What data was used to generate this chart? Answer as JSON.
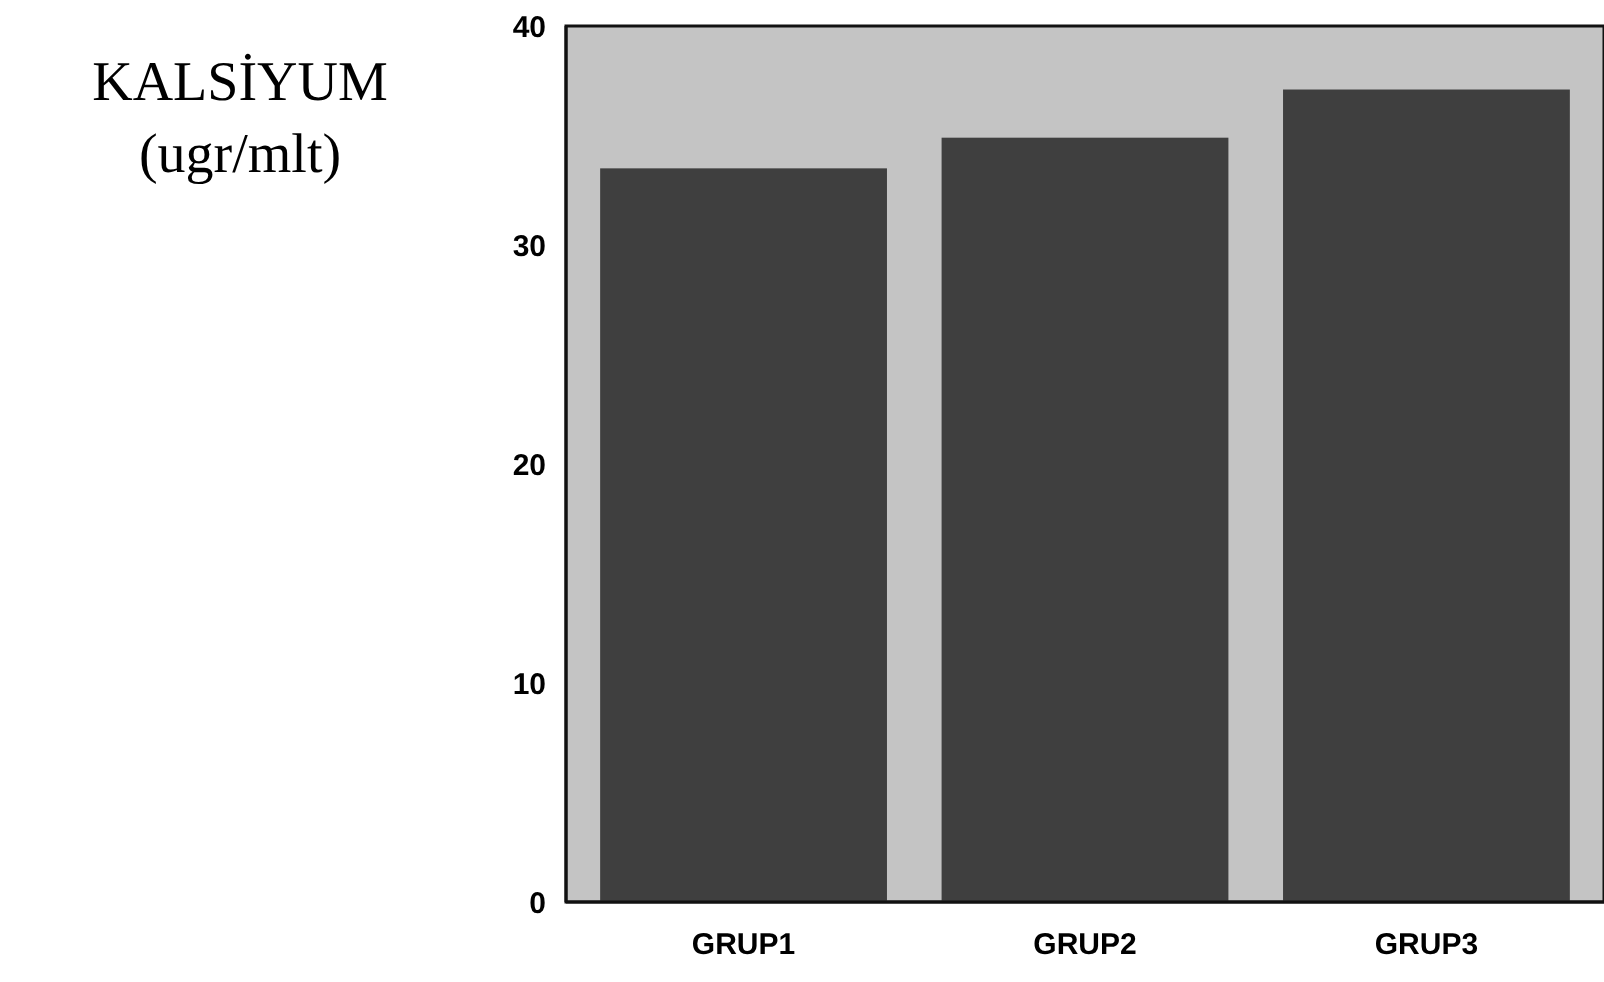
{
  "chart_data": {
    "type": "bar",
    "ylabel": "KALSİYUM\n(ugr/mlt)",
    "categories": [
      "GRUP1",
      "GRUP2",
      "GRUP3"
    ],
    "values": [
      33.5,
      34.9,
      37.1
    ],
    "color": "#3f3f3f",
    "ylim": [
      0,
      40
    ],
    "yticks": [
      0,
      10,
      20,
      30,
      40
    ],
    "grid": false
  }
}
